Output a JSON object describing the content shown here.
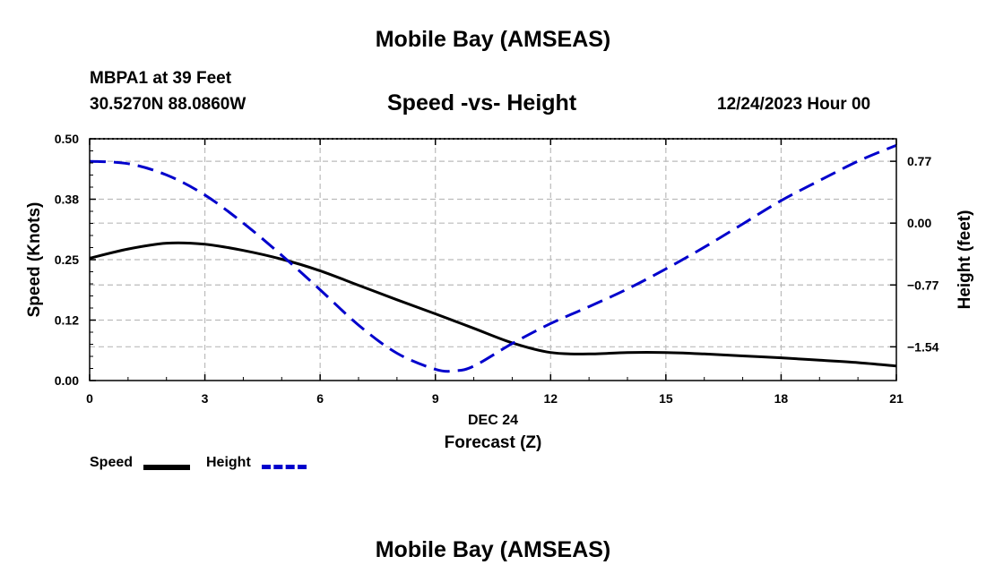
{
  "header": {
    "title": "Mobile Bay (AMSEAS)",
    "station": "MBPA1 at 39 Feet",
    "coords": "30.5270N  88.0860W",
    "plot_title": "Speed -vs- Height",
    "date_label": "12/24/2023 Hour 00"
  },
  "footer": {
    "title": "Mobile Bay (AMSEAS)"
  },
  "legend": {
    "speed_label": "Speed",
    "height_label": "Height"
  },
  "colors": {
    "speed": "#000000",
    "height": "#0000cc",
    "grid": "#bbbbbb"
  },
  "chart_data": {
    "type": "line",
    "title": "Speed -vs- Height",
    "xlabel": "Forecast (Z)",
    "xsublabel": "DEC 24",
    "ylabel": "Speed (Knots)",
    "y2label": "Height (feet)",
    "xlim": [
      0,
      21
    ],
    "ylim": [
      0,
      0.5
    ],
    "y2lim": [
      -1.96,
      1.05
    ],
    "x_ticks": [
      0,
      3,
      6,
      9,
      12,
      15,
      18,
      21
    ],
    "x_tick_labels": [
      "0",
      "3",
      "6",
      "9",
      "12",
      "15",
      "18",
      "21"
    ],
    "y_ticks": [
      0,
      0.125,
      0.25,
      0.375,
      0.5
    ],
    "y_tick_labels": [
      "0.00",
      "0.12",
      "0.25",
      "0.38",
      "0.50"
    ],
    "y2_ticks": [
      0.77,
      0,
      -0.77,
      -1.54
    ],
    "y2_tick_labels": [
      "0.77",
      "0.00",
      "−0.77",
      "−1.54"
    ],
    "grid": true,
    "series": [
      {
        "name": "Speed",
        "axis": "left",
        "style": "solid",
        "x": [
          0,
          1,
          2,
          3,
          4,
          5,
          6,
          7,
          8,
          9,
          10,
          11,
          12,
          13,
          14,
          15,
          16,
          17,
          18,
          19,
          20,
          21
        ],
        "values": [
          0.253,
          0.272,
          0.284,
          0.282,
          0.269,
          0.251,
          0.227,
          0.197,
          0.167,
          0.138,
          0.108,
          0.078,
          0.058,
          0.055,
          0.058,
          0.058,
          0.055,
          0.051,
          0.047,
          0.042,
          0.037,
          0.03
        ]
      },
      {
        "name": "Height",
        "axis": "right",
        "style": "dashed",
        "x": [
          0,
          1,
          2,
          3,
          4,
          5,
          6,
          7,
          8,
          9,
          9.5,
          10,
          11,
          12,
          13,
          14,
          15,
          16,
          17,
          18,
          19,
          20,
          21
        ],
        "values": [
          0.77,
          0.74,
          0.6,
          0.35,
          0.0,
          -0.4,
          -0.83,
          -1.27,
          -1.62,
          -1.82,
          -1.84,
          -1.78,
          -1.5,
          -1.25,
          -1.04,
          -0.82,
          -0.57,
          -0.3,
          -0.01,
          0.28,
          0.53,
          0.77,
          0.97
        ]
      }
    ]
  }
}
